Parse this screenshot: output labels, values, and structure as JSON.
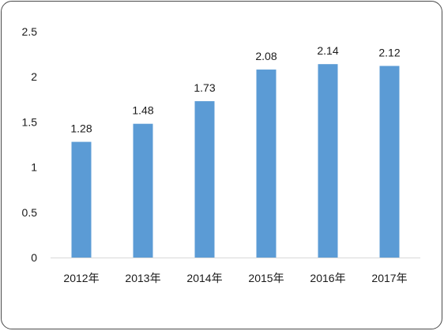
{
  "chart_data": {
    "type": "bar",
    "categories": [
      "2012年",
      "2013年",
      "2014年",
      "2015年",
      "2016年",
      "2017年"
    ],
    "values": [
      1.28,
      1.48,
      1.73,
      2.08,
      2.14,
      2.12
    ],
    "data_labels": [
      "1.28",
      "1.48",
      "1.73",
      "2.08",
      "2.14",
      "2.12"
    ],
    "yticks": [
      0,
      0.5,
      1,
      1.5,
      2,
      2.5
    ],
    "ytick_labels": [
      "0",
      "0.5",
      "1",
      "1.5",
      "2",
      "2.5"
    ],
    "ylim": [
      0,
      2.5
    ],
    "bar_color": "#5b9bd5",
    "axis_color": "#d9d9d9",
    "grid": false,
    "legend": "none"
  }
}
